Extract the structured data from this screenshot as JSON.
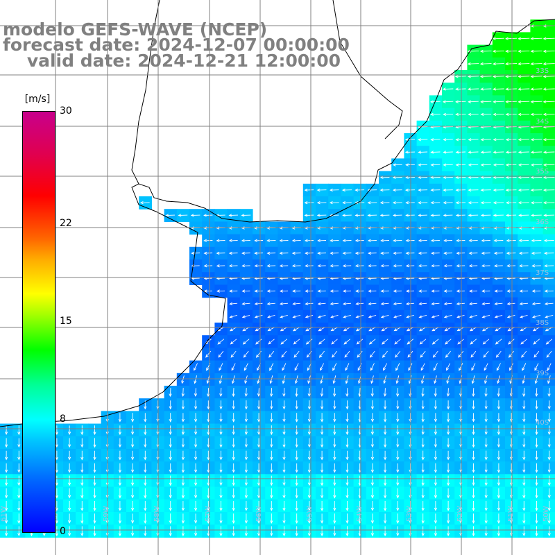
{
  "title": {
    "line1": "modelo GEFS-WAVE (NCEP)",
    "line2": "forecast date: 2024-12-07 00:00:00",
    "line3": "    valid date: 2024-12-21 12:00:00"
  },
  "colorbar": {
    "unit": "[m/s]",
    "min": 0,
    "max": 30,
    "ticks": [
      {
        "value": 30,
        "label": "30"
      },
      {
        "value": 22,
        "label": "22"
      },
      {
        "value": 15,
        "label": "15"
      },
      {
        "value": 8,
        "label": "8"
      },
      {
        "value": 0,
        "label": "0"
      }
    ],
    "colors": [
      "#0000ff",
      "#00c8ff",
      "#00ffff",
      "#00ff00",
      "#ffff00",
      "#ff6400",
      "#ff0000",
      "#c8008c"
    ]
  },
  "grid_labels": {
    "lon": [
      "61W",
      "60W",
      "59W",
      "58W",
      "57W",
      "56W",
      "55W",
      "54W",
      "53W",
      "52W",
      "51W",
      "50W"
    ],
    "lat": [
      "33S",
      "34S",
      "35S",
      "36S",
      "37S",
      "38S",
      "39S",
      "40S"
    ]
  },
  "colors": {
    "land": "#ffffff",
    "coast": "#000000",
    "grid": "#808080",
    "arrow": "#ffffff"
  }
}
